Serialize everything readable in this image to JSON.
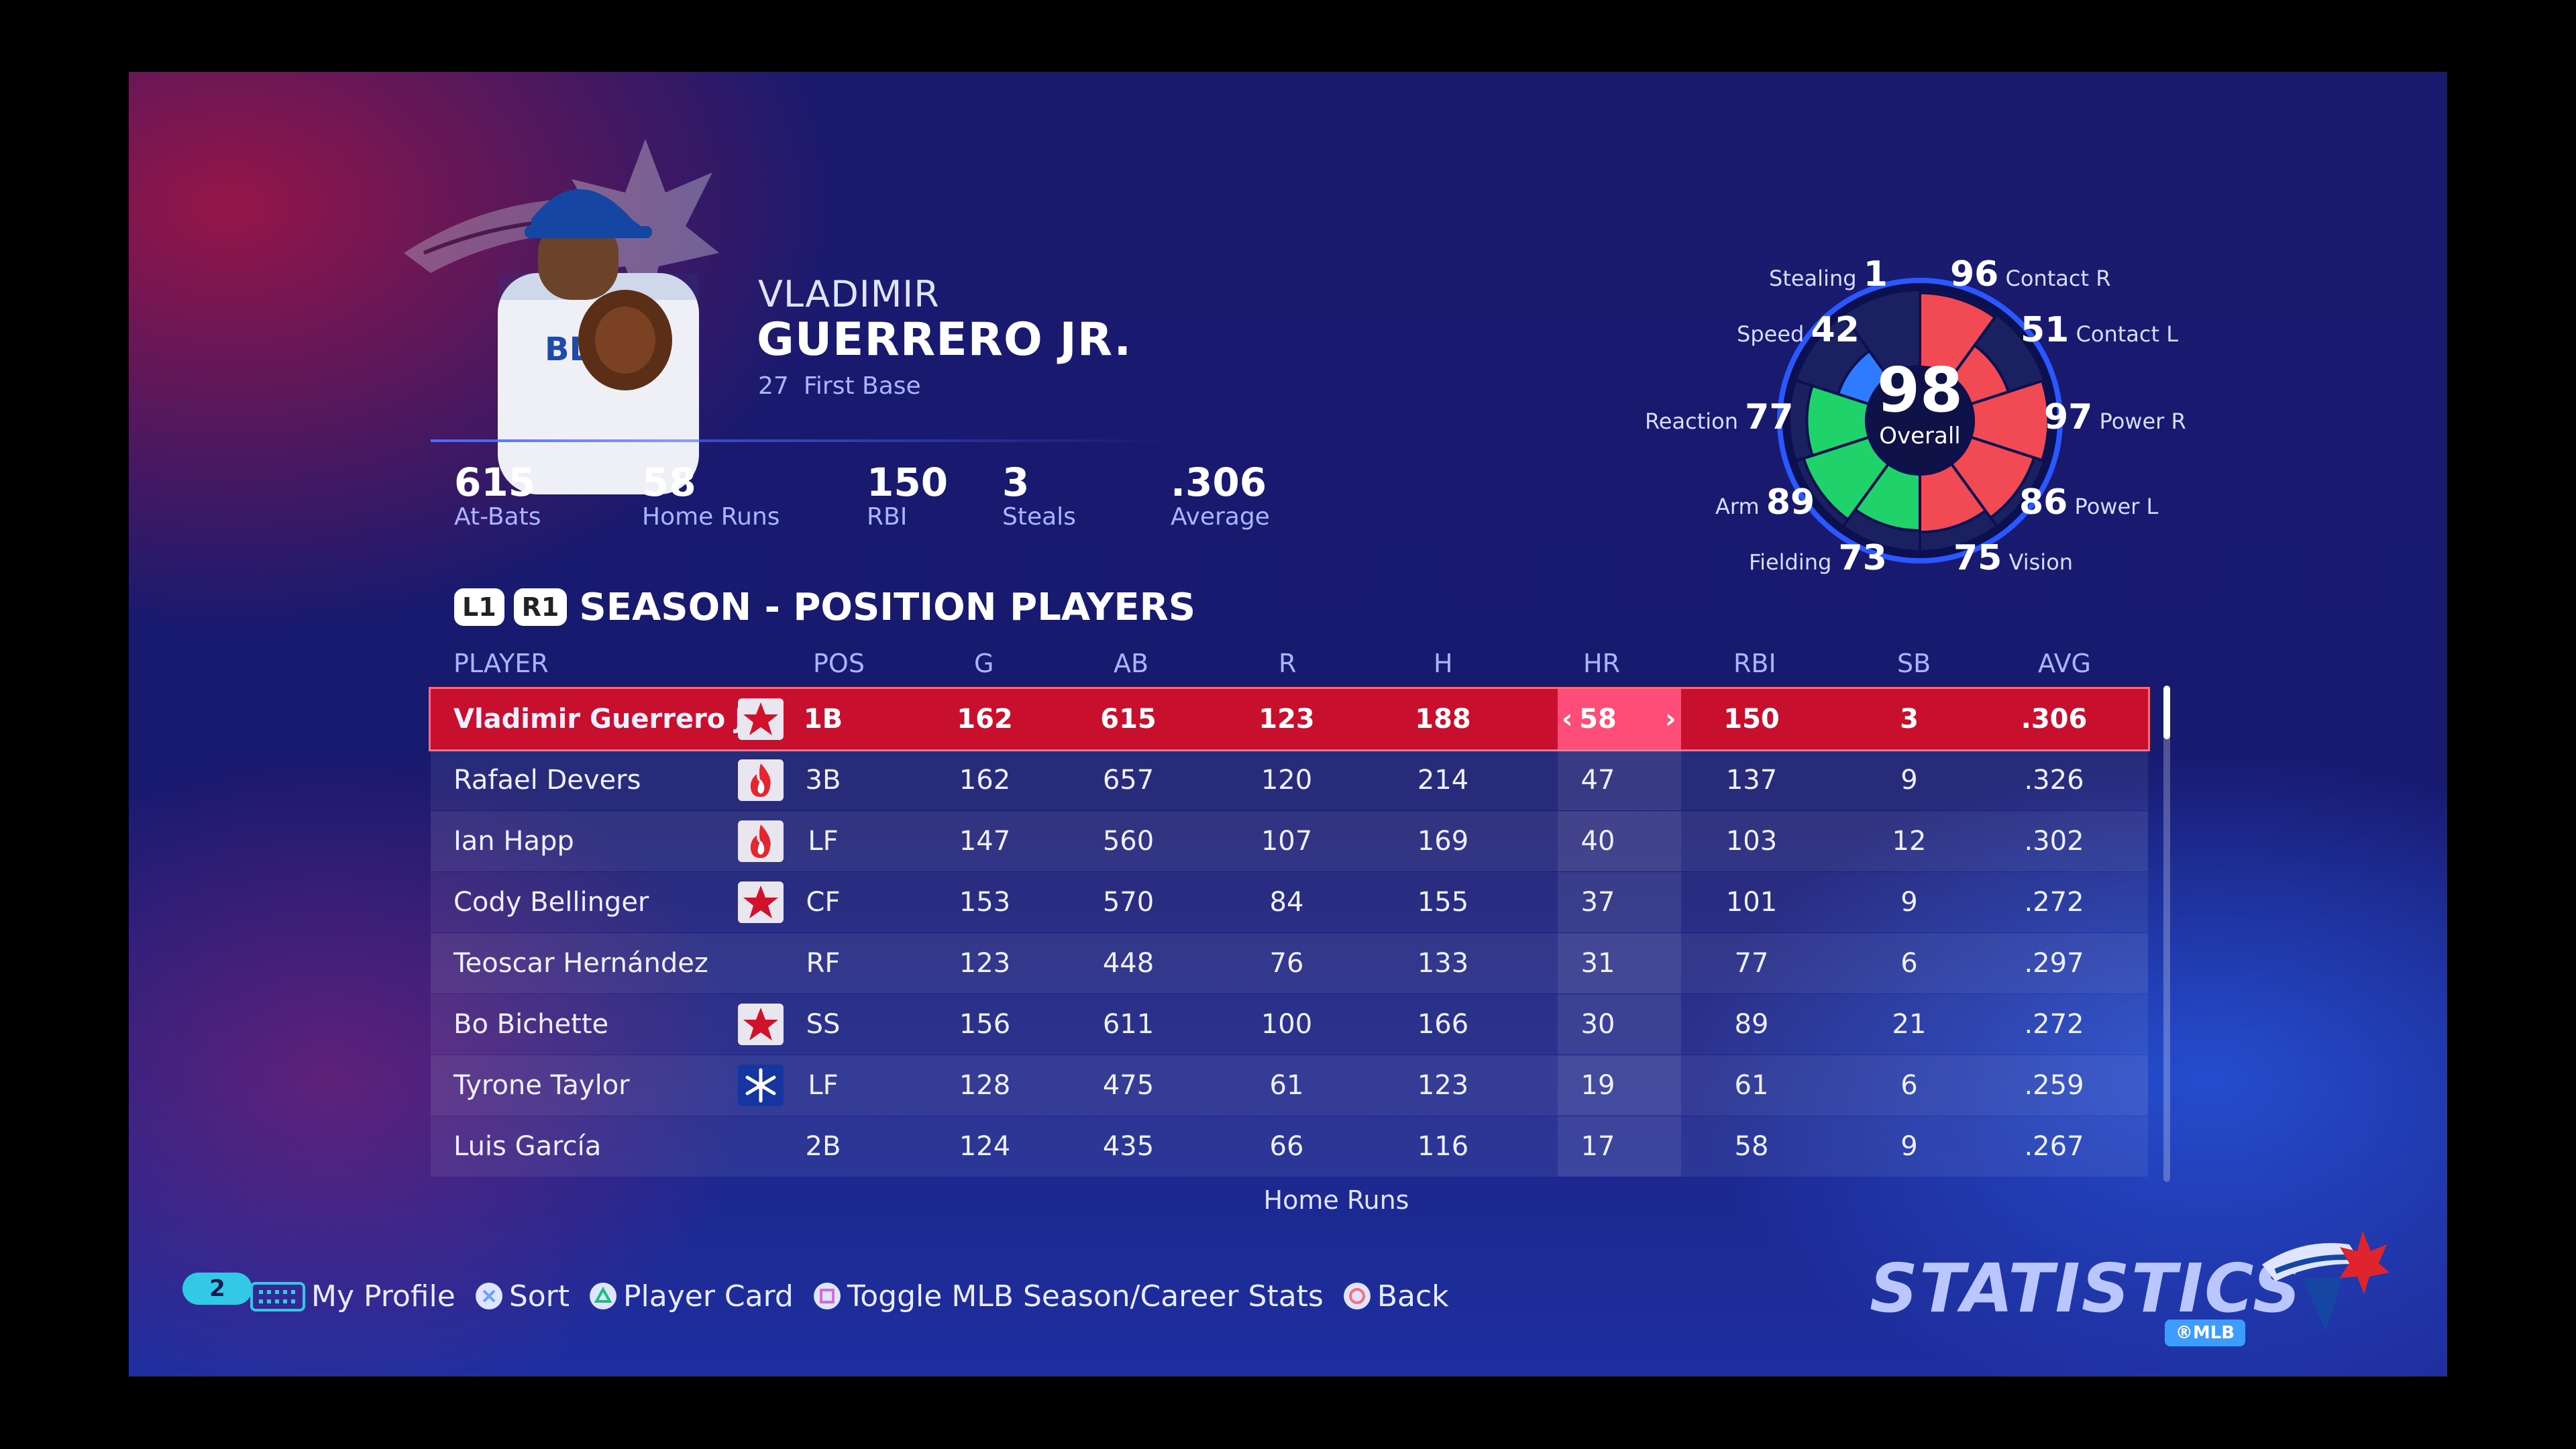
{
  "player": {
    "first_name": "VLADIMIR",
    "last_name": "GUERRERO JR.",
    "number": "27",
    "position": "First Base"
  },
  "header_stats": [
    {
      "value": "615",
      "label": "At-Bats"
    },
    {
      "value": "58",
      "label": "Home Runs"
    },
    {
      "value": "150",
      "label": "RBI"
    },
    {
      "value": "3",
      "label": "Steals"
    },
    {
      "value": ".306",
      "label": "Average"
    }
  ],
  "ratings": {
    "overall_value": "98",
    "overall_label": "Overall",
    "attributes": [
      {
        "label": "Contact R",
        "value": "96"
      },
      {
        "label": "Contact L",
        "value": "51"
      },
      {
        "label": "Power R",
        "value": "97"
      },
      {
        "label": "Power L",
        "value": "86"
      },
      {
        "label": "Vision",
        "value": "75"
      },
      {
        "label": "Fielding",
        "value": "73"
      },
      {
        "label": "Arm",
        "value": "89"
      },
      {
        "label": "Reaction",
        "value": "77"
      },
      {
        "label": "Speed",
        "value": "42"
      },
      {
        "label": "Stealing",
        "value": "1"
      }
    ],
    "colors": {
      "hitting": "#f24a55",
      "defense": "#1fd26a",
      "speed": "#2f7bff"
    }
  },
  "season": {
    "l_button": "L1",
    "r_button": "R1",
    "title": "SEASON - POSITION PLAYERS",
    "columns": [
      "PLAYER",
      "POS",
      "G",
      "AB",
      "R",
      "H",
      "HR",
      "RBI",
      "SB",
      "AVG"
    ],
    "sorted_column": "HR",
    "rows": [
      {
        "name": "Vladimir Guerrero Jr.",
        "icon": "star-icon",
        "pos": "1B",
        "g": "162",
        "ab": "615",
        "r": "123",
        "h": "188",
        "hr": "58",
        "rbi": "150",
        "sb": "3",
        "avg": ".306"
      },
      {
        "name": "Rafael Devers",
        "icon": "flame-icon",
        "pos": "3B",
        "g": "162",
        "ab": "657",
        "r": "120",
        "h": "214",
        "hr": "47",
        "rbi": "137",
        "sb": "9",
        "avg": ".326"
      },
      {
        "name": "Ian Happ",
        "icon": "flame-icon",
        "pos": "LF",
        "g": "147",
        "ab": "560",
        "r": "107",
        "h": "169",
        "hr": "40",
        "rbi": "103",
        "sb": "12",
        "avg": ".302"
      },
      {
        "name": "Cody Bellinger",
        "icon": "star-icon",
        "pos": "CF",
        "g": "153",
        "ab": "570",
        "r": "84",
        "h": "155",
        "hr": "37",
        "rbi": "101",
        "sb": "9",
        "avg": ".272"
      },
      {
        "name": "Teoscar Hernández",
        "icon": "",
        "pos": "RF",
        "g": "123",
        "ab": "448",
        "r": "76",
        "h": "133",
        "hr": "31",
        "rbi": "77",
        "sb": "6",
        "avg": ".297"
      },
      {
        "name": "Bo Bichette",
        "icon": "star-icon",
        "pos": "SS",
        "g": "156",
        "ab": "611",
        "r": "100",
        "h": "166",
        "hr": "30",
        "rbi": "89",
        "sb": "21",
        "avg": ".272"
      },
      {
        "name": "Tyrone Taylor",
        "icon": "snowflake-icon",
        "pos": "LF",
        "g": "128",
        "ab": "475",
        "r": "61",
        "h": "123",
        "hr": "19",
        "rbi": "61",
        "sb": "6",
        "avg": ".259"
      },
      {
        "name": "Luis García",
        "icon": "",
        "pos": "2B",
        "g": "124",
        "ab": "435",
        "r": "66",
        "h": "116",
        "hr": "17",
        "rbi": "58",
        "sb": "9",
        "avg": ".267"
      }
    ],
    "sort_label": "Home Runs"
  },
  "footer": {
    "notification_count": "2",
    "items": [
      {
        "label": "My Profile",
        "icon": "touchpad-icon"
      },
      {
        "label": "Sort",
        "icon": "cross-button-icon"
      },
      {
        "label": "Player Card",
        "icon": "triangle-button-icon"
      },
      {
        "label": "Toggle MLB Season/Career Stats",
        "icon": "square-button-icon"
      },
      {
        "label": "Back",
        "icon": "circle-button-icon"
      }
    ]
  },
  "brand": {
    "screen_title": "STATISTICS",
    "league_badge": "®MLB"
  },
  "colors": {
    "selected_row": "#c8102e",
    "sorted_cell_selected": "#ff4d79",
    "accent": "#a9b6ff"
  }
}
